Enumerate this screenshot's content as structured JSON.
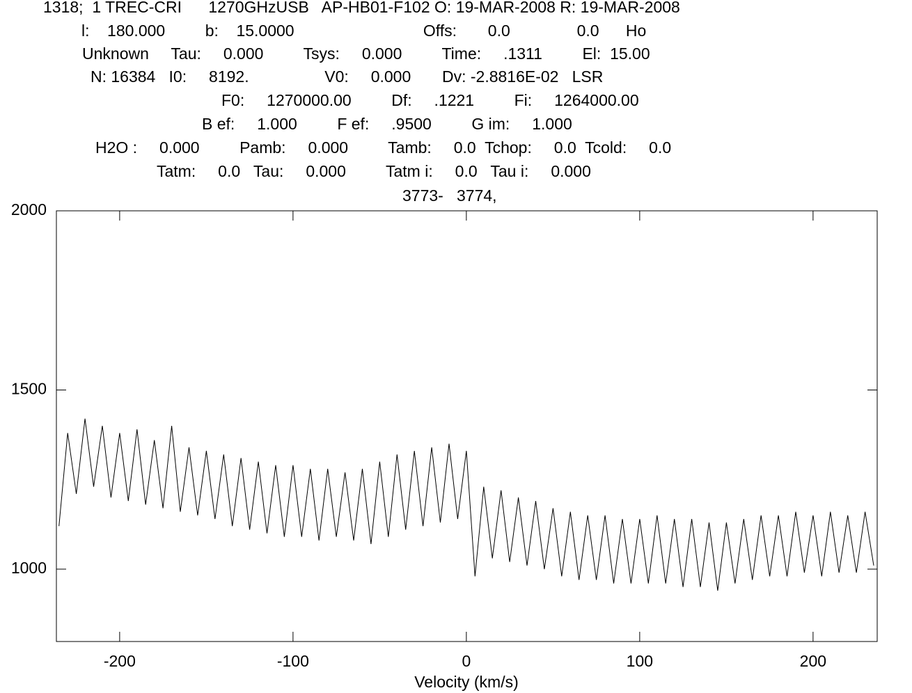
{
  "chart_data": {
    "type": "line",
    "header": [
      "1318;  1 TREC-CRI      1270GHzUSB   AP-HB01-F102 O: 19-MAR-2008 R: 19-MAR-2008",
      "l:    180.000         b:    15.0000                             Offs:       0.0               0.0      Ho",
      "Unknown     Tau:     0.000         Tsys:     0.000         Time:     .1311         El:  15.00",
      "N: 16384   I0:     8192.                 V0:     0.000       Dv: -2.8816E-02   LSR",
      "F0:     1270000.00         Df:     .1221         Fi:     1264000.00",
      "B ef:     1.000         F ef:     .9500         G im:     1.000",
      "H2O :     0.000         Pamb:     0.000         Tamb:     0.0  Tchop:     0.0  Tcold:     0.0",
      "Tatm:     0.0   Tau:     0.000         Tatm i:     0.0   Tau i:     0.000",
      "3773-   3774,"
    ],
    "x_label": "Velocity (km/s)",
    "x": [
      -235,
      -230,
      -225,
      -220,
      -215,
      -210,
      -205,
      -200,
      -195,
      -190,
      -185,
      -180,
      -175,
      -170,
      -165,
      -160,
      -155,
      -150,
      -145,
      -140,
      -135,
      -130,
      -125,
      -120,
      -115,
      -110,
      -105,
      -100,
      -95,
      -90,
      -85,
      -80,
      -75,
      -70,
      -65,
      -60,
      -55,
      -50,
      -45,
      -40,
      -35,
      -30,
      -25,
      -20,
      -15,
      -10,
      -5,
      0,
      5,
      10,
      15,
      20,
      25,
      30,
      35,
      40,
      45,
      50,
      55,
      60,
      65,
      70,
      75,
      80,
      85,
      90,
      95,
      100,
      105,
      110,
      115,
      120,
      125,
      130,
      135,
      140,
      145,
      150,
      155,
      160,
      165,
      170,
      175,
      180,
      185,
      190,
      195,
      200,
      205,
      210,
      215,
      220,
      225,
      230,
      235
    ],
    "series": [
      {
        "color": "#000000",
        "values": [
          1120,
          1380,
          1210,
          1420,
          1230,
          1400,
          1200,
          1380,
          1190,
          1390,
          1180,
          1360,
          1170,
          1400,
          1160,
          1340,
          1150,
          1330,
          1140,
          1320,
          1120,
          1310,
          1110,
          1300,
          1100,
          1290,
          1090,
          1290,
          1090,
          1280,
          1080,
          1280,
          1090,
          1270,
          1080,
          1280,
          1070,
          1300,
          1090,
          1320,
          1110,
          1330,
          1120,
          1340,
          1130,
          1350,
          1140,
          1330,
          980,
          1230,
          1030,
          1220,
          1020,
          1200,
          1010,
          1190,
          1000,
          1170,
          980,
          1160,
          970,
          1150,
          970,
          1150,
          960,
          1140,
          960,
          1140,
          960,
          1150,
          960,
          1140,
          950,
          1140,
          950,
          1130,
          940,
          1130,
          960,
          1140,
          970,
          1150,
          980,
          1150,
          980,
          1160,
          990,
          1150,
          980,
          1160,
          990,
          1150,
          990,
          1160,
          1010
        ]
      }
    ],
    "xlim": [
      -236.5,
      237
    ],
    "ylim": [
      798,
      2000
    ],
    "xticks": [
      -200,
      -100,
      0,
      100,
      200
    ],
    "yticks": [
      1000,
      1500,
      2000
    ]
  }
}
